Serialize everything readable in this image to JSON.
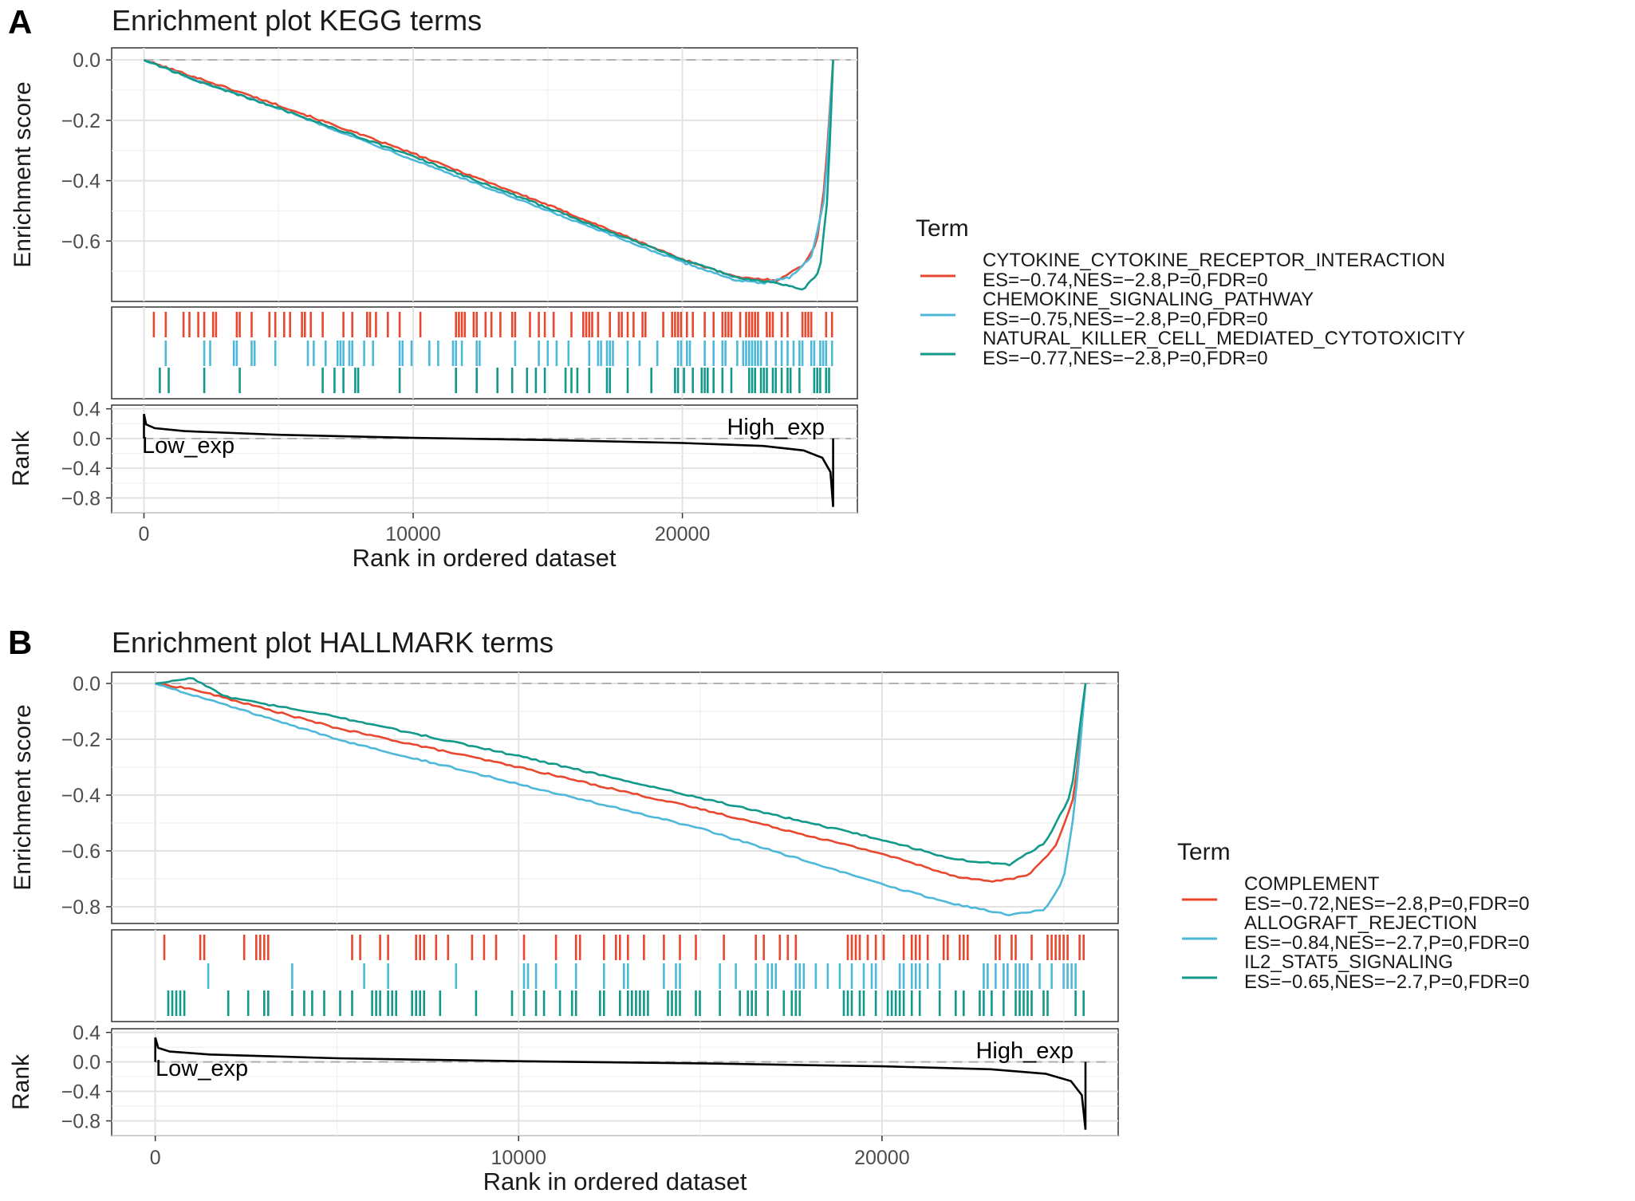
{
  "colors": {
    "red": "#e8482f",
    "blue": "#4db8d8",
    "green": "#12998a",
    "rank_line": "#000000"
  },
  "chart_data": [
    {
      "panel_label": "A",
      "type": "line",
      "title": "Enrichment plot KEGG terms",
      "xlabel": "Rank in ordered dataset",
      "ylabel_es": "Enrichment score",
      "ylabel_rank": "Rank",
      "xlim": [
        -1200,
        26500
      ],
      "x_ticks": [
        0,
        10000,
        20000
      ],
      "x_tick_labels": [
        "0",
        "10000",
        "20000"
      ],
      "es_ylim": [
        -0.8,
        0.04
      ],
      "es_ticks": [
        0.0,
        -0.2,
        -0.4,
        -0.6
      ],
      "es_tick_labels": [
        "0.0",
        "−0.2",
        "−0.4",
        "−0.6"
      ],
      "rank_ylim": [
        -1.0,
        0.45
      ],
      "rank_ticks": [
        0.4,
        0.0,
        -0.4,
        -0.8
      ],
      "rank_tick_labels": [
        "0.4",
        "0.0",
        "−0.4",
        "−0.8"
      ],
      "rank_annotations": {
        "low": "Low_exp",
        "high": "High_exp"
      },
      "rank_curve": {
        "x": [
          0,
          80,
          400,
          1500,
          5000,
          10000,
          15000,
          20000,
          23000,
          24500,
          25200,
          25500,
          25600
        ],
        "y": [
          0.33,
          0.19,
          0.14,
          0.1,
          0.05,
          0.01,
          -0.02,
          -0.06,
          -0.1,
          -0.16,
          -0.26,
          -0.45,
          -0.92
        ]
      },
      "legend_title": "Term",
      "legend_position": "right",
      "grid": true,
      "series": [
        {
          "name": "CYTOKINE_CYTOKINE_RECEPTOR_INTERACTION",
          "stats": "ES=−0.74,NES=−2.8,P=0,FDR=0",
          "color_key": "red",
          "x": [
            0,
            2000,
            5000,
            10000,
            15000,
            20000,
            22000,
            23500,
            24500,
            25000,
            25300,
            25600
          ],
          "y": [
            0.0,
            -0.06,
            -0.15,
            -0.31,
            -0.48,
            -0.66,
            -0.72,
            -0.73,
            -0.68,
            -0.6,
            -0.4,
            0.0
          ],
          "hit_density": [
            0.45,
            0.5,
            0.55,
            0.6,
            0.65,
            0.7,
            0.8,
            0.95
          ]
        },
        {
          "name": "CHEMOKINE_SIGNALING_PATHWAY",
          "stats": "ES=−0.75,NES=−2.8,P=0,FDR=0",
          "color_key": "blue",
          "x": [
            0,
            2000,
            5000,
            10000,
            15000,
            20000,
            22000,
            23000,
            24000,
            24800,
            25300,
            25600
          ],
          "y": [
            0.0,
            -0.07,
            -0.16,
            -0.33,
            -0.5,
            -0.67,
            -0.73,
            -0.74,
            -0.72,
            -0.65,
            -0.45,
            0.0
          ],
          "hit_density": [
            0.3,
            0.3,
            0.35,
            0.4,
            0.45,
            0.55,
            0.75,
            0.95
          ]
        },
        {
          "name": "NATURAL_KILLER_CELL_MEDIATED_CYTOTOXICITY",
          "stats": "ES=−0.77,NES=−2.8,P=0,FDR=0",
          "color_key": "green",
          "x": [
            0,
            2000,
            5000,
            10000,
            15000,
            20000,
            22000,
            23500,
            24500,
            25100,
            25400,
            25600
          ],
          "y": [
            0.0,
            -0.07,
            -0.16,
            -0.32,
            -0.49,
            -0.66,
            -0.72,
            -0.74,
            -0.76,
            -0.7,
            -0.45,
            0.0
          ],
          "hit_density": [
            0.25,
            0.25,
            0.3,
            0.35,
            0.4,
            0.5,
            0.7,
            0.95
          ]
        }
      ]
    },
    {
      "panel_label": "B",
      "type": "line",
      "title": "Enrichment plot HALLMARK terms",
      "xlabel": "Rank in ordered dataset",
      "ylabel_es": "Enrichment score",
      "ylabel_rank": "Rank",
      "xlim": [
        -1200,
        26500
      ],
      "x_ticks": [
        0,
        10000,
        20000
      ],
      "x_tick_labels": [
        "0",
        "10000",
        "20000"
      ],
      "es_ylim": [
        -0.86,
        0.04
      ],
      "es_ticks": [
        0.0,
        -0.2,
        -0.4,
        -0.6,
        -0.8
      ],
      "es_tick_labels": [
        "0.0",
        "−0.2",
        "−0.4",
        "−0.6",
        "−0.8"
      ],
      "rank_ylim": [
        -1.0,
        0.45
      ],
      "rank_ticks": [
        0.4,
        0.0,
        -0.4,
        -0.8
      ],
      "rank_tick_labels": [
        "0.4",
        "0.0",
        "−0.4",
        "−0.8"
      ],
      "rank_annotations": {
        "low": "Low_exp",
        "high": "High_exp"
      },
      "rank_curve": {
        "x": [
          0,
          80,
          400,
          1500,
          5000,
          10000,
          15000,
          20000,
          23000,
          24500,
          25200,
          25500,
          25600
        ],
        "y": [
          0.33,
          0.19,
          0.14,
          0.1,
          0.05,
          0.01,
          -0.02,
          -0.06,
          -0.1,
          -0.16,
          -0.26,
          -0.45,
          -0.92
        ]
      },
      "legend_title": "Term",
      "legend_position": "right",
      "grid": true,
      "series": [
        {
          "name": "COMPLEMENT",
          "stats": "ES=−0.72,NES=−2.8,P=0,FDR=0",
          "color_key": "red",
          "x": [
            0,
            1000,
            5000,
            10000,
            15000,
            20000,
            22000,
            23000,
            24000,
            24800,
            25300,
            25600
          ],
          "y": [
            0.0,
            -0.02,
            -0.16,
            -0.3,
            -0.45,
            -0.61,
            -0.69,
            -0.71,
            -0.69,
            -0.58,
            -0.4,
            0.0
          ],
          "hit_density": [
            0.35,
            0.3,
            0.4,
            0.45,
            0.5,
            0.55,
            0.7,
            0.95
          ]
        },
        {
          "name": "ALLOGRAFT_REJECTION",
          "stats": "ES=−0.84,NES=−2.7,P=0,FDR=0",
          "color_key": "blue",
          "x": [
            0,
            1000,
            5000,
            10000,
            15000,
            20000,
            22000,
            23500,
            24500,
            25000,
            25300,
            25600
          ],
          "y": [
            0.0,
            -0.04,
            -0.2,
            -0.36,
            -0.52,
            -0.72,
            -0.79,
            -0.83,
            -0.81,
            -0.7,
            -0.45,
            0.0
          ],
          "hit_density": [
            0.1,
            0.25,
            0.3,
            0.35,
            0.45,
            0.5,
            0.7,
            0.95
          ]
        },
        {
          "name": "IL2_STAT5_SIGNALING",
          "stats": "ES=−0.65,NES=−2.7,P=0,FDR=0",
          "color_key": "green",
          "x": [
            0,
            1000,
            2000,
            5000,
            10000,
            15000,
            20000,
            22000,
            23500,
            24500,
            25200,
            25600
          ],
          "y": [
            0.0,
            0.02,
            -0.05,
            -0.12,
            -0.26,
            -0.41,
            -0.56,
            -0.63,
            -0.65,
            -0.57,
            -0.4,
            0.0
          ],
          "hit_density": [
            0.6,
            0.55,
            0.6,
            0.6,
            0.65,
            0.7,
            0.8,
            0.95
          ]
        }
      ]
    }
  ]
}
